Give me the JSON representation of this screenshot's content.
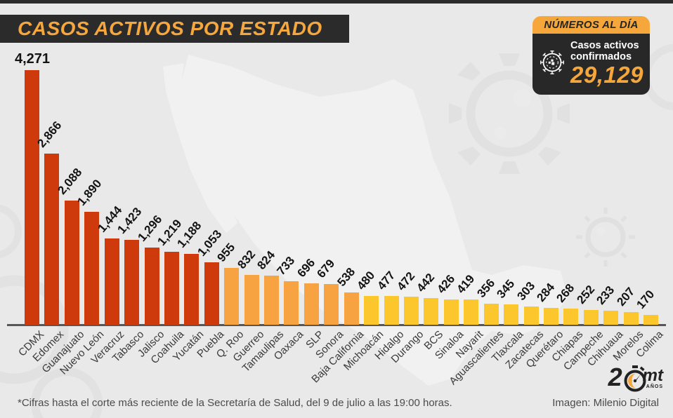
{
  "page": {
    "title": "CASOS ACTIVOS POR ESTADO",
    "footnote": "*Cifras hasta el corte más reciente de la Secretaría de Salud, del 9 de julio a las 19:00 horas.",
    "credit": "Imagen: Milenio Digital"
  },
  "badge": {
    "header": "NÚMEROS AL DÍA",
    "label_line1": "Casos activos",
    "label_line2": "confirmados",
    "value": "29,129",
    "icon": "virus-icon",
    "accent_color": "#F6A73B",
    "bg_color": "#282828"
  },
  "logo": {
    "prefix": "2",
    "name": "mt",
    "sub": "AÑOS"
  },
  "chart_data": {
    "type": "bar",
    "title": "CASOS ACTIVOS POR ESTADO",
    "orientation": "vertical",
    "gridlines": false,
    "ylim": [
      0,
      4500
    ],
    "categories": [
      "CDMX",
      "Edomex",
      "Guanajuato",
      "Nuevo León",
      "Veracruz",
      "Tabasco",
      "Jalisco",
      "Coahuila",
      "Yucatán",
      "Puebla",
      "Q. Roo",
      "Guerreo",
      "Tamaulipas",
      "Oaxaca",
      "SLP",
      "Sonora",
      "Baja California",
      "Michoacán",
      "Hidalgo",
      "Durango",
      "BCS",
      "Sinaloa",
      "Nayarit",
      "Aguascalientes",
      "Tlaxcala",
      "Zacatecas",
      "Querétaro",
      "Chiapas",
      "Campeche",
      "Chihuaua",
      "Morelos",
      "Colima"
    ],
    "values": [
      4271,
      2866,
      2088,
      1890,
      1444,
      1423,
      1296,
      1219,
      1188,
      1053,
      955,
      832,
      824,
      733,
      696,
      679,
      538,
      480,
      477,
      472,
      442,
      426,
      419,
      356,
      345,
      303,
      284,
      268,
      252,
      233,
      207,
      170
    ],
    "value_labels": [
      "4,271",
      "2,866",
      "2,088",
      "1,890",
      "1,444",
      "1,423",
      "1,296",
      "1,219",
      "1,188",
      "1,053",
      "955",
      "832",
      "824",
      "733",
      "696",
      "679",
      "538",
      "480",
      "477",
      "472",
      "442",
      "426",
      "419",
      "356",
      "345",
      "303",
      "284",
      "268",
      "252",
      "233",
      "207",
      "170"
    ],
    "color_thresholds": [
      {
        "min": 1000,
        "color": "#ce3a0b"
      },
      {
        "min": 500,
        "color": "#f7a341"
      },
      {
        "min": 0,
        "color": "#fcc72d"
      }
    ]
  }
}
